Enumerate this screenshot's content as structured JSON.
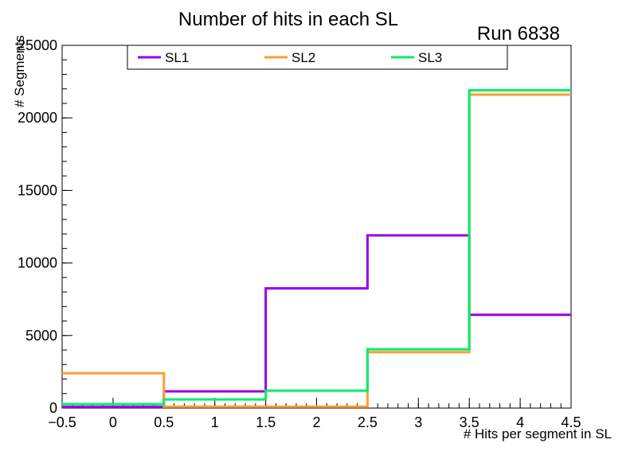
{
  "chart_data": {
    "type": "line",
    "subtype": "step-histogram",
    "title": "Number of hits in each SL",
    "run_label": "Run 6838",
    "xlabel": "# Hits per segment in SL",
    "ylabel": "# Segments",
    "xlim": [
      -0.5,
      4.5
    ],
    "ylim": [
      0,
      25000
    ],
    "grid": false,
    "legend_position": "top-inside",
    "bin_edges": [
      -0.5,
      0.5,
      1.5,
      2.5,
      3.5,
      4.5
    ],
    "bin_centers": [
      0,
      1,
      2,
      3,
      4
    ],
    "x_major_ticks": [
      -0.5,
      0,
      0.5,
      1,
      1.5,
      2,
      2.5,
      3,
      3.5,
      4,
      4.5
    ],
    "x_tick_labels": [
      "−0.5",
      "0",
      "0.5",
      "1",
      "1.5",
      "2",
      "2.5",
      "3",
      "3.5",
      "4",
      "4.5"
    ],
    "x_minor_step": 0.1,
    "y_major_ticks": [
      0,
      5000,
      10000,
      15000,
      20000,
      25000
    ],
    "y_tick_labels": [
      "0",
      "5000",
      "10000",
      "15000",
      "20000",
      "25000"
    ],
    "y_minor_step": 1000,
    "axis_color": "#000000",
    "background_color": "#ffffff",
    "series": [
      {
        "name": "SL1",
        "color": "#9900e6",
        "values": [
          80,
          1150,
          8250,
          11900,
          6430
        ]
      },
      {
        "name": "SL2",
        "color": "#ff9d33",
        "values": [
          2400,
          100,
          100,
          3850,
          21600
        ]
      },
      {
        "name": "SL3",
        "color": "#00ee66",
        "values": [
          270,
          600,
          1200,
          4050,
          21900
        ]
      }
    ]
  }
}
